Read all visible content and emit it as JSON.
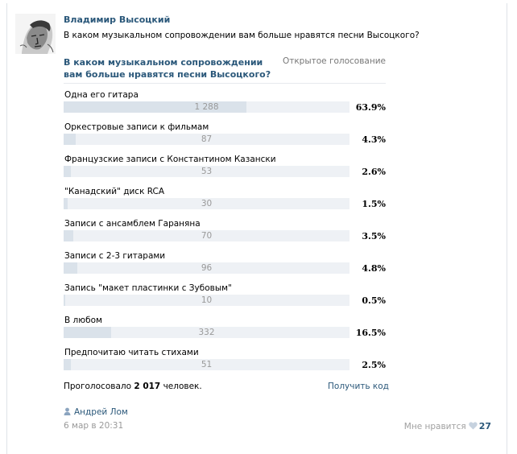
{
  "post": {
    "author": "Владимир Высоцкий",
    "text": "В каком музыкальном сопровождении вам больше нравятся песни Высоцкого?"
  },
  "poll": {
    "question": "В каком музыкальном сопровождении вам больше нравятся песни Высоцкого?",
    "type": "Открытое голосование",
    "options": [
      {
        "label": "Одна его гитара",
        "count": "1 288",
        "percent": "63.9%",
        "share": 0.639
      },
      {
        "label": "Оркестровые записи к фильмам",
        "count": "87",
        "percent": "4.3%",
        "share": 0.043
      },
      {
        "label": "Французские записи с Константином Казански",
        "count": "53",
        "percent": "2.6%",
        "share": 0.026
      },
      {
        "label": "\"Канадский\" диск RCA",
        "count": "30",
        "percent": "1.5%",
        "share": 0.015
      },
      {
        "label": "Записи с ансамблем Гараняна",
        "count": "70",
        "percent": "3.5%",
        "share": 0.035
      },
      {
        "label": "Записи с 2-3 гитарами",
        "count": "96",
        "percent": "4.8%",
        "share": 0.048
      },
      {
        "label": "Запись \"макет пластинки с Зубовым\"",
        "count": "10",
        "percent": "0.5%",
        "share": 0.005
      },
      {
        "label": "В любом",
        "count": "332",
        "percent": "16.5%",
        "share": 0.165
      },
      {
        "label": "Предпочитаю читать стихами",
        "count": "51",
        "percent": "2.5%",
        "share": 0.025
      }
    ],
    "voted_prefix": "Проголосовало ",
    "voted_total": "2 017",
    "voted_suffix": " человек.",
    "get_code": "Получить код"
  },
  "footer": {
    "signer": "Андрей Лом",
    "date": "6 мар в 20:31",
    "like_label": "Мне нравится",
    "like_count": "27"
  }
}
